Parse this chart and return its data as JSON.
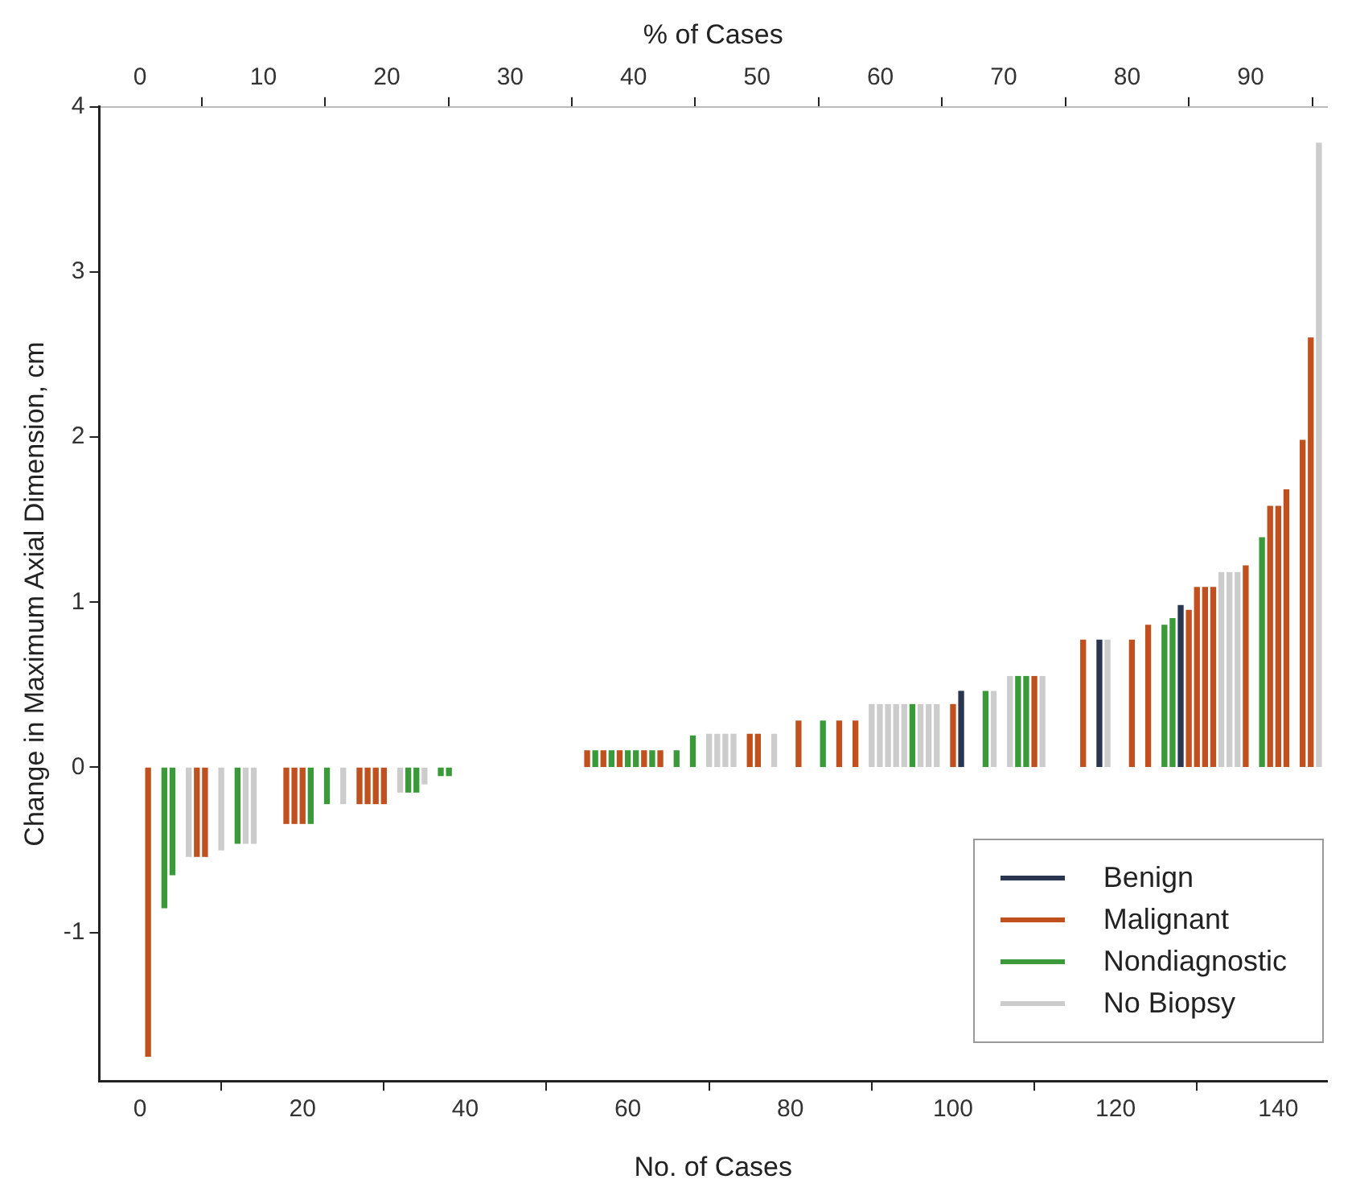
{
  "chart_data": {
    "type": "bar",
    "xlabel": "No. of Cases",
    "x2label": "% of Cases",
    "ylabel": "Change in Maximum Axial Dimension, cm",
    "xlim": [
      -5,
      146
    ],
    "xticks": [
      0,
      20,
      40,
      60,
      80,
      100,
      120,
      140
    ],
    "x2lim": [
      -3.3,
      96.2
    ],
    "x2ticks": [
      0,
      10,
      20,
      30,
      40,
      50,
      60,
      70,
      80,
      90
    ],
    "ylim": [
      -1.9,
      4
    ],
    "yticks": [
      -1,
      0,
      1,
      2,
      3,
      4
    ],
    "grid": false,
    "legend": "bottom right",
    "series": [
      {
        "name": "Benign",
        "color": "#2a3550",
        "x": [
          101,
          118,
          128
        ],
        "values": [
          0.46,
          0.77,
          0.98
        ]
      },
      {
        "name": "Malignant",
        "color": "#c0501e",
        "x": [
          1,
          7,
          8,
          18,
          19,
          20,
          27,
          28,
          29,
          30,
          55,
          57,
          59,
          62,
          64,
          75,
          76,
          81,
          86,
          88,
          100,
          110,
          116,
          122,
          124,
          129,
          130,
          131,
          132,
          136,
          139,
          140,
          141,
          143,
          144
        ],
        "values": [
          -1.75,
          -0.54,
          -0.54,
          -0.34,
          -0.34,
          -0.34,
          -0.22,
          -0.22,
          -0.22,
          -0.22,
          0.1,
          0.1,
          0.1,
          0.1,
          0.1,
          0.2,
          0.2,
          0.28,
          0.28,
          0.28,
          0.38,
          0.55,
          0.77,
          0.77,
          0.86,
          0.95,
          1.09,
          1.09,
          1.09,
          1.22,
          1.58,
          1.58,
          1.68,
          1.98,
          2.6
        ]
      },
      {
        "name": "Nondiagnostic",
        "color": "#3a9a3a",
        "x": [
          3,
          4,
          12,
          21,
          23,
          33,
          34,
          37,
          38,
          56,
          58,
          60,
          61,
          63,
          66,
          68,
          84,
          95,
          104,
          108,
          109,
          126,
          127,
          138
        ],
        "values": [
          -0.85,
          -0.65,
          -0.46,
          -0.34,
          -0.22,
          -0.15,
          -0.15,
          -0.05,
          -0.05,
          0.1,
          0.1,
          0.1,
          0.1,
          0.1,
          0.1,
          0.19,
          0.28,
          0.38,
          0.46,
          0.55,
          0.55,
          0.86,
          0.9,
          1.39
        ]
      },
      {
        "name": "No Biopsy",
        "color": "#cccccc",
        "x": [
          6,
          10,
          13,
          14,
          25,
          32,
          35,
          70,
          71,
          72,
          73,
          78,
          90,
          91,
          92,
          93,
          94,
          96,
          97,
          98,
          105,
          107,
          111,
          119,
          133,
          134,
          135,
          145
        ],
        "values": [
          -0.54,
          -0.5,
          -0.46,
          -0.46,
          -0.22,
          -0.15,
          -0.1,
          0.2,
          0.2,
          0.2,
          0.2,
          0.2,
          0.38,
          0.38,
          0.38,
          0.38,
          0.38,
          0.38,
          0.38,
          0.38,
          0.46,
          0.55,
          0.55,
          0.77,
          1.18,
          1.18,
          1.18,
          3.78
        ]
      }
    ]
  }
}
